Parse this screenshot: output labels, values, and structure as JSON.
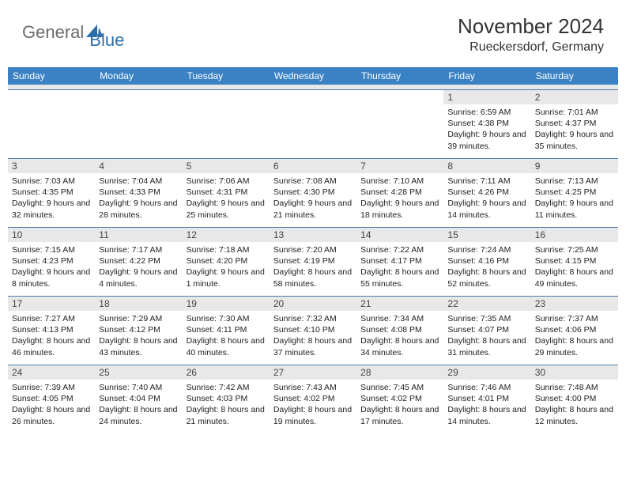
{
  "logo": {
    "text1": "General",
    "text2": "Blue"
  },
  "title": "November 2024",
  "location": "Rueckersdorf, Germany",
  "header_bg": "#3b82c4",
  "header_fg": "#ffffff",
  "daynum_bg": "#e8e8e8",
  "row_border": "#4a7ba8",
  "text_color": "#222222",
  "day_headers": [
    "Sunday",
    "Monday",
    "Tuesday",
    "Wednesday",
    "Thursday",
    "Friday",
    "Saturday"
  ],
  "weeks": [
    [
      null,
      null,
      null,
      null,
      null,
      {
        "n": "1",
        "sr": "6:59 AM",
        "ss": "4:38 PM",
        "dl": "9 hours and 39 minutes."
      },
      {
        "n": "2",
        "sr": "7:01 AM",
        "ss": "4:37 PM",
        "dl": "9 hours and 35 minutes."
      }
    ],
    [
      {
        "n": "3",
        "sr": "7:03 AM",
        "ss": "4:35 PM",
        "dl": "9 hours and 32 minutes."
      },
      {
        "n": "4",
        "sr": "7:04 AM",
        "ss": "4:33 PM",
        "dl": "9 hours and 28 minutes."
      },
      {
        "n": "5",
        "sr": "7:06 AM",
        "ss": "4:31 PM",
        "dl": "9 hours and 25 minutes."
      },
      {
        "n": "6",
        "sr": "7:08 AM",
        "ss": "4:30 PM",
        "dl": "9 hours and 21 minutes."
      },
      {
        "n": "7",
        "sr": "7:10 AM",
        "ss": "4:28 PM",
        "dl": "9 hours and 18 minutes."
      },
      {
        "n": "8",
        "sr": "7:11 AM",
        "ss": "4:26 PM",
        "dl": "9 hours and 14 minutes."
      },
      {
        "n": "9",
        "sr": "7:13 AM",
        "ss": "4:25 PM",
        "dl": "9 hours and 11 minutes."
      }
    ],
    [
      {
        "n": "10",
        "sr": "7:15 AM",
        "ss": "4:23 PM",
        "dl": "9 hours and 8 minutes."
      },
      {
        "n": "11",
        "sr": "7:17 AM",
        "ss": "4:22 PM",
        "dl": "9 hours and 4 minutes."
      },
      {
        "n": "12",
        "sr": "7:18 AM",
        "ss": "4:20 PM",
        "dl": "9 hours and 1 minute."
      },
      {
        "n": "13",
        "sr": "7:20 AM",
        "ss": "4:19 PM",
        "dl": "8 hours and 58 minutes."
      },
      {
        "n": "14",
        "sr": "7:22 AM",
        "ss": "4:17 PM",
        "dl": "8 hours and 55 minutes."
      },
      {
        "n": "15",
        "sr": "7:24 AM",
        "ss": "4:16 PM",
        "dl": "8 hours and 52 minutes."
      },
      {
        "n": "16",
        "sr": "7:25 AM",
        "ss": "4:15 PM",
        "dl": "8 hours and 49 minutes."
      }
    ],
    [
      {
        "n": "17",
        "sr": "7:27 AM",
        "ss": "4:13 PM",
        "dl": "8 hours and 46 minutes."
      },
      {
        "n": "18",
        "sr": "7:29 AM",
        "ss": "4:12 PM",
        "dl": "8 hours and 43 minutes."
      },
      {
        "n": "19",
        "sr": "7:30 AM",
        "ss": "4:11 PM",
        "dl": "8 hours and 40 minutes."
      },
      {
        "n": "20",
        "sr": "7:32 AM",
        "ss": "4:10 PM",
        "dl": "8 hours and 37 minutes."
      },
      {
        "n": "21",
        "sr": "7:34 AM",
        "ss": "4:08 PM",
        "dl": "8 hours and 34 minutes."
      },
      {
        "n": "22",
        "sr": "7:35 AM",
        "ss": "4:07 PM",
        "dl": "8 hours and 31 minutes."
      },
      {
        "n": "23",
        "sr": "7:37 AM",
        "ss": "4:06 PM",
        "dl": "8 hours and 29 minutes."
      }
    ],
    [
      {
        "n": "24",
        "sr": "7:39 AM",
        "ss": "4:05 PM",
        "dl": "8 hours and 26 minutes."
      },
      {
        "n": "25",
        "sr": "7:40 AM",
        "ss": "4:04 PM",
        "dl": "8 hours and 24 minutes."
      },
      {
        "n": "26",
        "sr": "7:42 AM",
        "ss": "4:03 PM",
        "dl": "8 hours and 21 minutes."
      },
      {
        "n": "27",
        "sr": "7:43 AM",
        "ss": "4:02 PM",
        "dl": "8 hours and 19 minutes."
      },
      {
        "n": "28",
        "sr": "7:45 AM",
        "ss": "4:02 PM",
        "dl": "8 hours and 17 minutes."
      },
      {
        "n": "29",
        "sr": "7:46 AM",
        "ss": "4:01 PM",
        "dl": "8 hours and 14 minutes."
      },
      {
        "n": "30",
        "sr": "7:48 AM",
        "ss": "4:00 PM",
        "dl": "8 hours and 12 minutes."
      }
    ]
  ],
  "labels": {
    "sunrise": "Sunrise:",
    "sunset": "Sunset:",
    "daylight": "Daylight:"
  }
}
